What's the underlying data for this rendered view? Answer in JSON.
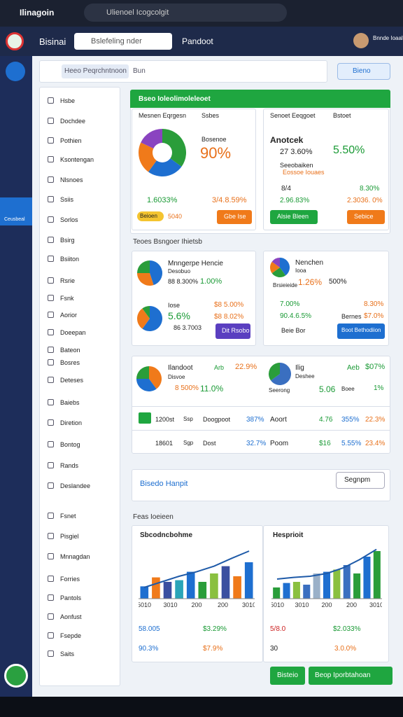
{
  "browser": {
    "tab": "Ilinagoin",
    "address": "Ulienoel Icogcolgit"
  },
  "header": {
    "brand": "Bisinai",
    "search": "Bslefeling nder",
    "link": "Pandoot",
    "user": "Bnnde Ioaaloe"
  },
  "rail": {
    "active": "Ceusbeal"
  },
  "toolbar": {
    "breadcrumb": "Heeo Peqrchntnoon",
    "filter": "Bun",
    "button": "Bieno"
  },
  "nav": [
    "Hsbe",
    "Dochdee",
    "Pothien",
    "Ksontengan",
    "Nlsnoes",
    "Ssiis",
    "Sorlos",
    "Bsirg",
    "Bsiiton",
    "Rsrie",
    "Fsnk",
    "Aorior",
    "Doeepan",
    "Bateon",
    "Bosres",
    "Deteses",
    "Baiebs",
    "Diretion",
    "Bontog",
    "Rands",
    "Deslandee",
    "Fsnet",
    "Pisgiel",
    "Mnnagdan",
    "Forries",
    "Pantols",
    "Aonfust",
    "Fsepde",
    "Saits"
  ],
  "panel": {
    "title": "Bseo Ioleolimoleleoet",
    "card_a": {
      "tabs": [
        "Mesnen Eqrgesn",
        "Ssbes"
      ],
      "pie": {
        "values": [
          35,
          25,
          22,
          18
        ],
        "colors": [
          "#2a9d3a",
          "#1e6fd0",
          "#f07a1a",
          "#8a44c0"
        ]
      },
      "label": "Bosenoe",
      "big": "90%",
      "stat_1": "1.6033%",
      "stat_2": "3/4.8.59%",
      "pill": "Beioen",
      "note": "5040",
      "button": "Gbe Ise"
    },
    "card_b": {
      "tabs": [
        "Senoet Eeqgoet",
        "Bstoet"
      ],
      "title": "Anotcek",
      "line_1": "27 3.60%",
      "big": "5.50%",
      "sub_1": "Seeobaiken",
      "sub_2": "Eossoe Iouaes",
      "row_1": [
        "8/4",
        "8.30%"
      ],
      "row_2": [
        "2.96.83%",
        "2.3036. 0%"
      ],
      "button_1": "Alsie Bleen",
      "button_2": "Sebice"
    }
  },
  "section_1": "Teoes Bsngoer Ihietsb",
  "card_c": {
    "pie_1": {
      "values": [
        45,
        30,
        25
      ],
      "colors": [
        "#1e6fd0",
        "#f07a1a",
        "#2a9d3a"
      ]
    },
    "title": "Mnngerpe Hencie",
    "sub": "Desobuo",
    "line": "88 8.300%",
    "pct": "1.00%",
    "pie_2": {
      "values": [
        60,
        30,
        10
      ],
      "colors": [
        "#1e6fd0",
        "#f07a1a",
        "#2a9d3a"
      ]
    },
    "title_2": "Iose",
    "big": "5.6%",
    "line_2": "86 3.7003",
    "side_1": "$8 5.00%",
    "side_2": "$8 8.02%",
    "button": "Dit Rsobo"
  },
  "card_d": {
    "pie": {
      "values": [
        40,
        25,
        20,
        15
      ],
      "colors": [
        "#1e6fd0",
        "#2a9d3a",
        "#f07a1a",
        "#8a44c0"
      ]
    },
    "title": "Nenchen",
    "sub": "Iooa",
    "caption": "Brsieieide",
    "pct_1": "1.26%",
    "pct_2": "500%",
    "row_1": [
      "7.00%",
      "8.30%"
    ],
    "row_2": [
      "90.4.6.5%",
      "Bernes",
      "$7.0%"
    ],
    "foot": "Beie Bor",
    "button": "Boot Bethodiion"
  },
  "card_e": {
    "pie_1": {
      "values": [
        40,
        35,
        25
      ],
      "colors": [
        "#f07a1a",
        "#1e6fd0",
        "#2a9d3a"
      ]
    },
    "title": "Ilandoot",
    "tag": "Arb",
    "pct": "22.9%",
    "sub": "Disvoe",
    "line": "8 500%",
    "big": "11.0%",
    "pie_2": {
      "values": [
        65,
        35
      ],
      "colors": [
        "#3a6fc0",
        "#2a9d3a"
      ]
    },
    "title_2": "Ilig",
    "sub_2": "Deshee",
    "caption": "Seerong",
    "big_2": "5.06",
    "label_2": "Boee",
    "pct_2": "1%",
    "tag_2": "Aeb",
    "pct_3": "$07%",
    "rows": [
      [
        "1200st",
        "Ssp",
        "Doogpoot",
        "387%",
        "Aoort",
        "4.76",
        "355%",
        "22.3%"
      ],
      [
        "18601",
        "Sgp",
        "Dost",
        "32.7%",
        "Poom",
        "$16",
        "5.55%",
        "23.4%"
      ]
    ]
  },
  "bar": {
    "title": "Bisedo Hanpit",
    "button": "Segnpm"
  },
  "section_2": "Feas Ioeieen",
  "chart_1": {
    "title": "Sbcodncbohme",
    "categories": [
      "5010",
      "3010",
      "200",
      "200",
      "3010"
    ],
    "values": [
      22,
      38,
      30,
      33,
      48,
      30,
      45,
      58,
      40,
      65
    ],
    "colors": [
      "#1e6fd0",
      "#f07a1a",
      "#3a4fa0",
      "#2aa5b8",
      "#1e6fd0",
      "#2a9d3a",
      "#8ac040",
      "#3a4fa0",
      "#f07a1a",
      "#1e6fd0"
    ],
    "line": [
      20,
      30,
      40,
      48,
      58,
      72,
      85
    ],
    "ylim": [
      0,
      100
    ]
  },
  "chart_2": {
    "title": "Hesprioit",
    "categories": [
      "5010",
      "3010",
      "200",
      "200",
      "3010"
    ],
    "values": [
      20,
      28,
      30,
      25,
      45,
      48,
      52,
      60,
      45,
      75,
      85
    ],
    "colors": [
      "#2a9d3a",
      "#1e6fd0",
      "#8ac040",
      "#3a6fc0",
      "#9ab0c8",
      "#1e6fd0",
      "#8ac040",
      "#3a6fc0",
      "#2a9d3a",
      "#1e6fd0",
      "#2a9d3a"
    ],
    "line": [
      35,
      38,
      40,
      45,
      55,
      70,
      88
    ],
    "ylim": [
      0,
      100
    ]
  },
  "foot_1": {
    "row_1": [
      "58.005",
      "$3.29%"
    ],
    "row_2": [
      "90.3%",
      "$7.9%"
    ]
  },
  "foot_2": {
    "row_1": [
      "5/8.0",
      "$2.033%"
    ],
    "row_2": [
      "30",
      "3.0.0%"
    ]
  },
  "actions": [
    "Bisteio",
    "Beop Iporbtahoan"
  ]
}
